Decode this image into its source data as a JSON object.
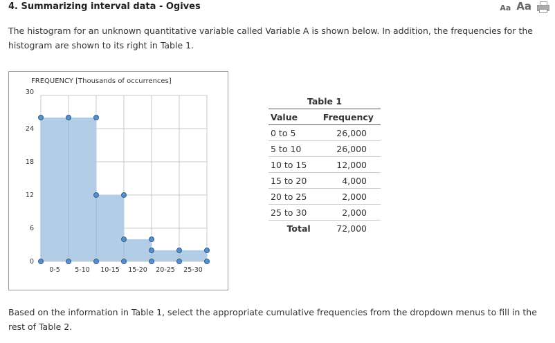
{
  "question": {
    "title": "4. Summarizing interval data - Ogives",
    "intro": "The histogram for an unknown quantitative variable called Variable A is shown below. In addition, the frequencies for the histogram are shown to its right in Table 1.",
    "instructions": "Based on the information in Table 1, select the appropriate cumulative frequencies from the dropdown menus to fill in the rest of Table 2."
  },
  "font_controls": {
    "small": "Aa",
    "large": "Aa",
    "print_icon": "printer-icon"
  },
  "chart_data": {
    "type": "bar",
    "title": "FREQUENCY [Thousands of occurrences]",
    "categories": [
      "0-5",
      "5-10",
      "10-15",
      "15-20",
      "20-25",
      "25-30"
    ],
    "values": [
      26,
      26,
      12,
      4,
      2,
      2
    ],
    "bar_width": 5,
    "xlim": [
      0,
      30
    ],
    "ylim": [
      0,
      30
    ],
    "yticks": [
      0,
      6,
      12,
      18,
      24,
      30
    ],
    "grid": true,
    "bar_color": "#b3cde6",
    "point_color": "#5b8fc7",
    "grid_color": "#c8c8c8"
  },
  "table1": {
    "caption": "Table 1",
    "headers": [
      "Value",
      "Frequency"
    ],
    "rows": [
      [
        "0 to 5",
        "26,000"
      ],
      [
        "5 to 10",
        "26,000"
      ],
      [
        "10 to 15",
        "12,000"
      ],
      [
        "15 to 20",
        "4,000"
      ],
      [
        "20 to 25",
        "2,000"
      ],
      [
        "25 to 30",
        "2,000"
      ]
    ],
    "total_label": "Total",
    "total_value": "72,000"
  }
}
